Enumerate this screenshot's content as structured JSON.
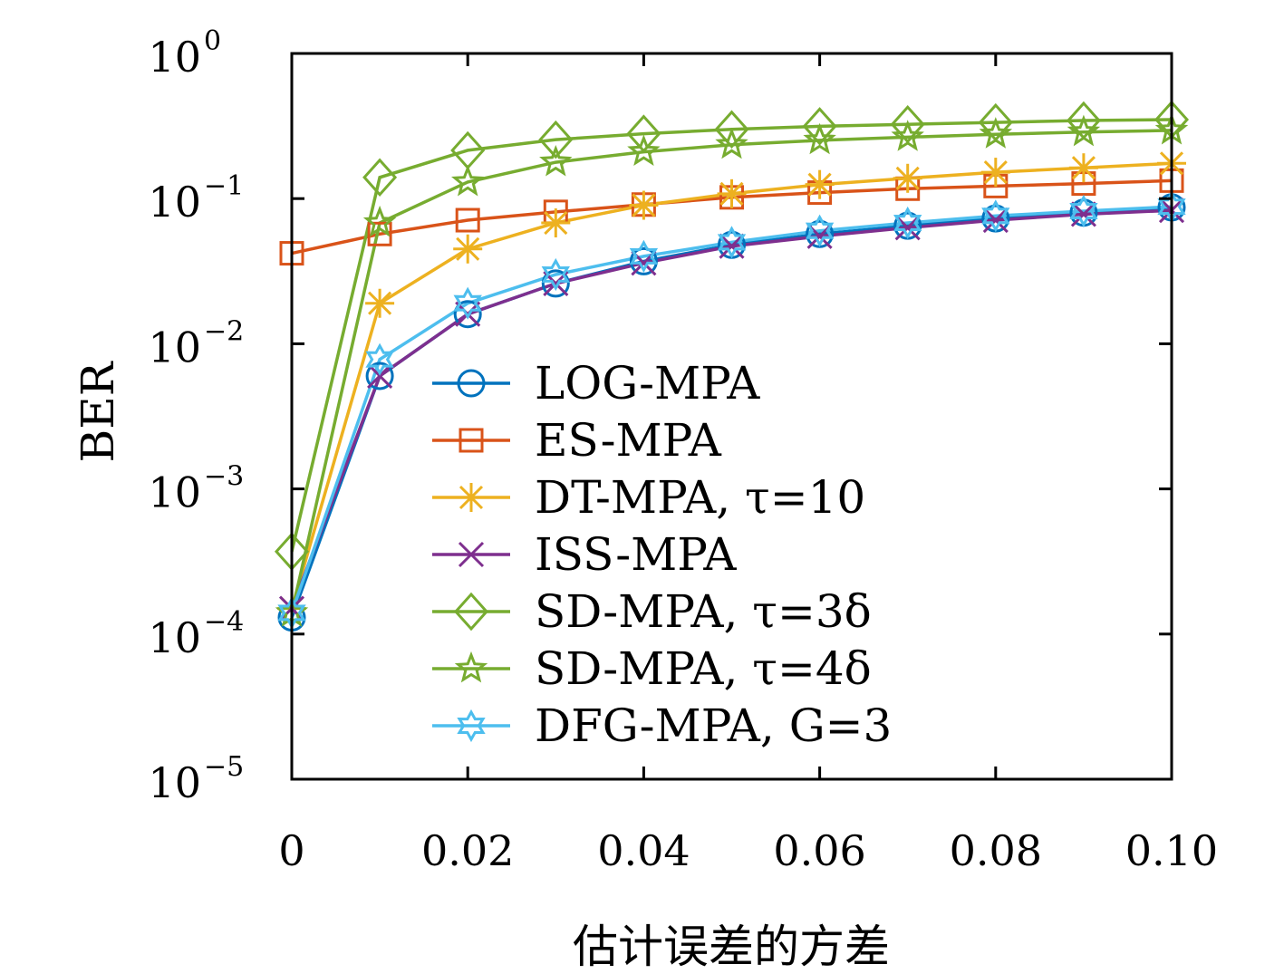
{
  "chart_data": {
    "type": "line",
    "title": "",
    "xlabel": "估计误差的方差",
    "ylabel": "BER",
    "xlim": [
      0,
      0.1
    ],
    "ylim": [
      1e-05,
      1
    ],
    "yscale": "log",
    "grid": false,
    "legend_position": "center-right",
    "x": [
      0,
      0.01,
      0.02,
      0.03,
      0.04,
      0.05,
      0.06,
      0.07,
      0.08,
      0.09,
      0.1
    ],
    "x_tick_labels": [
      "0",
      "0.02",
      "0.04",
      "0.06",
      "0.08",
      "0.10"
    ],
    "y_tick_labels": [
      {
        "base": "10",
        "exp": "0"
      },
      {
        "base": "10",
        "exp": "−1"
      },
      {
        "base": "10",
        "exp": "−2"
      },
      {
        "base": "10",
        "exp": "−3"
      },
      {
        "base": "10",
        "exp": "−4"
      },
      {
        "base": "10",
        "exp": "−5"
      }
    ],
    "series": [
      {
        "name": "LOG-MPA",
        "color": "#0072BD",
        "marker": "circle",
        "values": [
          0.00013,
          0.006,
          0.016,
          0.026,
          0.037,
          0.048,
          0.057,
          0.065,
          0.073,
          0.08,
          0.087
        ]
      },
      {
        "name": "ES-MPA",
        "color": "#D95319",
        "marker": "square",
        "values": [
          0.042,
          0.057,
          0.071,
          0.081,
          0.091,
          0.102,
          0.11,
          0.117,
          0.122,
          0.127,
          0.133
        ]
      },
      {
        "name": "DT-MPA, τ=10",
        "color": "#EDB120",
        "marker": "asterisk",
        "values": [
          0.00015,
          0.019,
          0.045,
          0.068,
          0.09,
          0.108,
          0.125,
          0.138,
          0.152,
          0.163,
          0.175
        ]
      },
      {
        "name": "ISS-MPA",
        "color": "#7E2F8E",
        "marker": "x",
        "values": [
          0.00015,
          0.006,
          0.016,
          0.026,
          0.036,
          0.047,
          0.055,
          0.063,
          0.071,
          0.078,
          0.083
        ]
      },
      {
        "name": "SD-MPA, τ=3δ",
        "color": "#77AC30",
        "marker": "diamond",
        "values": [
          0.00037,
          0.14,
          0.215,
          0.255,
          0.28,
          0.3,
          0.315,
          0.325,
          0.335,
          0.345,
          0.35
        ]
      },
      {
        "name": "SD-MPA, τ=4δ",
        "color": "#77AC30",
        "marker": "pentagram",
        "values": [
          0.00014,
          0.068,
          0.13,
          0.178,
          0.21,
          0.235,
          0.252,
          0.265,
          0.277,
          0.287,
          0.295
        ]
      },
      {
        "name": "DFG-MPA, G=3",
        "color": "#4DBEEE",
        "marker": "hexagram",
        "values": [
          0.00014,
          0.0078,
          0.019,
          0.03,
          0.04,
          0.05,
          0.06,
          0.068,
          0.076,
          0.082,
          0.088
        ]
      }
    ]
  }
}
